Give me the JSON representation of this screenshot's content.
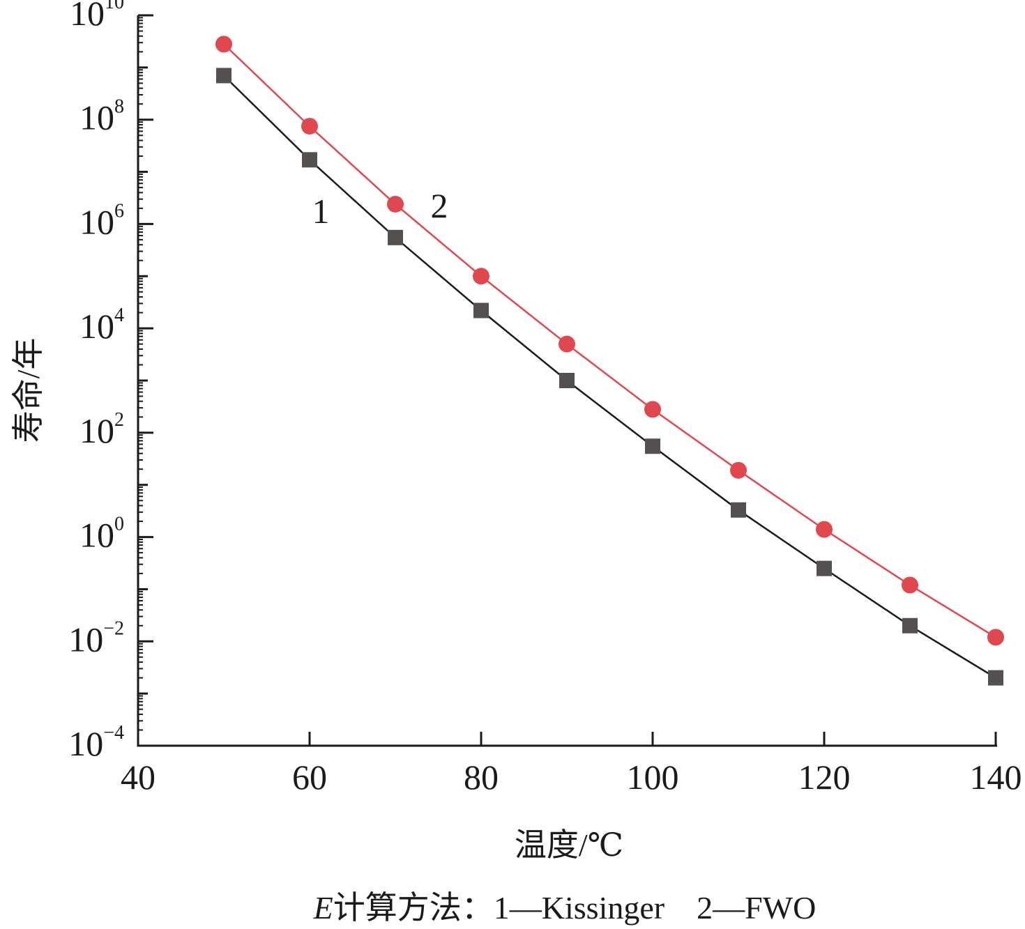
{
  "chart_data": {
    "type": "line",
    "xlabel": "温度/℃",
    "ylabel": "寿命/年",
    "caption": "E计算方法：1—Kissinger　2—FWO",
    "caption_italic": "E",
    "caption_rest": "计算方法：1—Kissinger　2—FWO",
    "x_ticks": [
      "40",
      "60",
      "80",
      "100",
      "120",
      "140"
    ],
    "xlim": [
      40,
      140
    ],
    "y_scale": "log",
    "ylim": [
      0.0001,
      10000000000
    ],
    "y_ticks": [
      {
        "base": "10",
        "exp": "−4"
      },
      {
        "base": "10",
        "exp": "−2"
      },
      {
        "base": "10",
        "exp": "0"
      },
      {
        "base": "10",
        "exp": "2"
      },
      {
        "base": "10",
        "exp": "4"
      },
      {
        "base": "10",
        "exp": "6"
      },
      {
        "base": "10",
        "exp": "8"
      },
      {
        "base": "10",
        "exp": "10"
      }
    ],
    "x": [
      50,
      60,
      70,
      80,
      90,
      100,
      110,
      120,
      130,
      140
    ],
    "series": [
      {
        "label": "1",
        "color": "#555050",
        "line_color": "#1a1a1a",
        "marker": "square",
        "values": [
          700000000,
          17000000,
          550000,
          22000,
          1000,
          55,
          3.3,
          0.25,
          0.02,
          0.002
        ]
      },
      {
        "label": "2",
        "color": "#e0474f",
        "line_color": "#e0474f",
        "marker": "circle",
        "values": [
          2800000000,
          75000000,
          2400000,
          100000,
          5000,
          280,
          19,
          1.4,
          0.12,
          0.012
        ]
      }
    ],
    "grid": false
  }
}
